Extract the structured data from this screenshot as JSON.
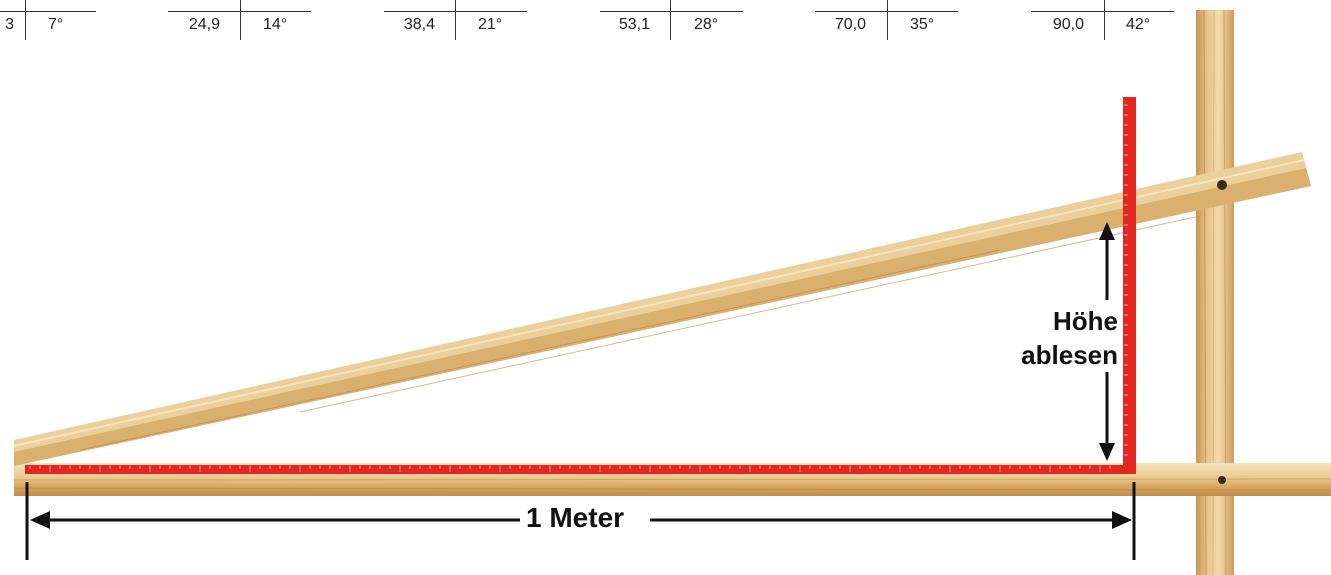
{
  "table": {
    "pairs": [
      {
        "value": "3",
        "angle": "7°"
      },
      {
        "value": "24,9",
        "angle": "14°"
      },
      {
        "value": "38,4",
        "angle": "21°"
      },
      {
        "value": "53,1",
        "angle": "28°"
      },
      {
        "value": "70,0",
        "angle": "35°"
      },
      {
        "value": "90,0",
        "angle": "42°"
      }
    ]
  },
  "labels": {
    "height_line1": "Höhe",
    "height_line2": "ablesen",
    "width": "1 Meter"
  },
  "colors": {
    "ruler": "#e3261f",
    "wood_light": "#f1dcb0",
    "wood_dark": "#c89457",
    "ink": "#111111"
  }
}
